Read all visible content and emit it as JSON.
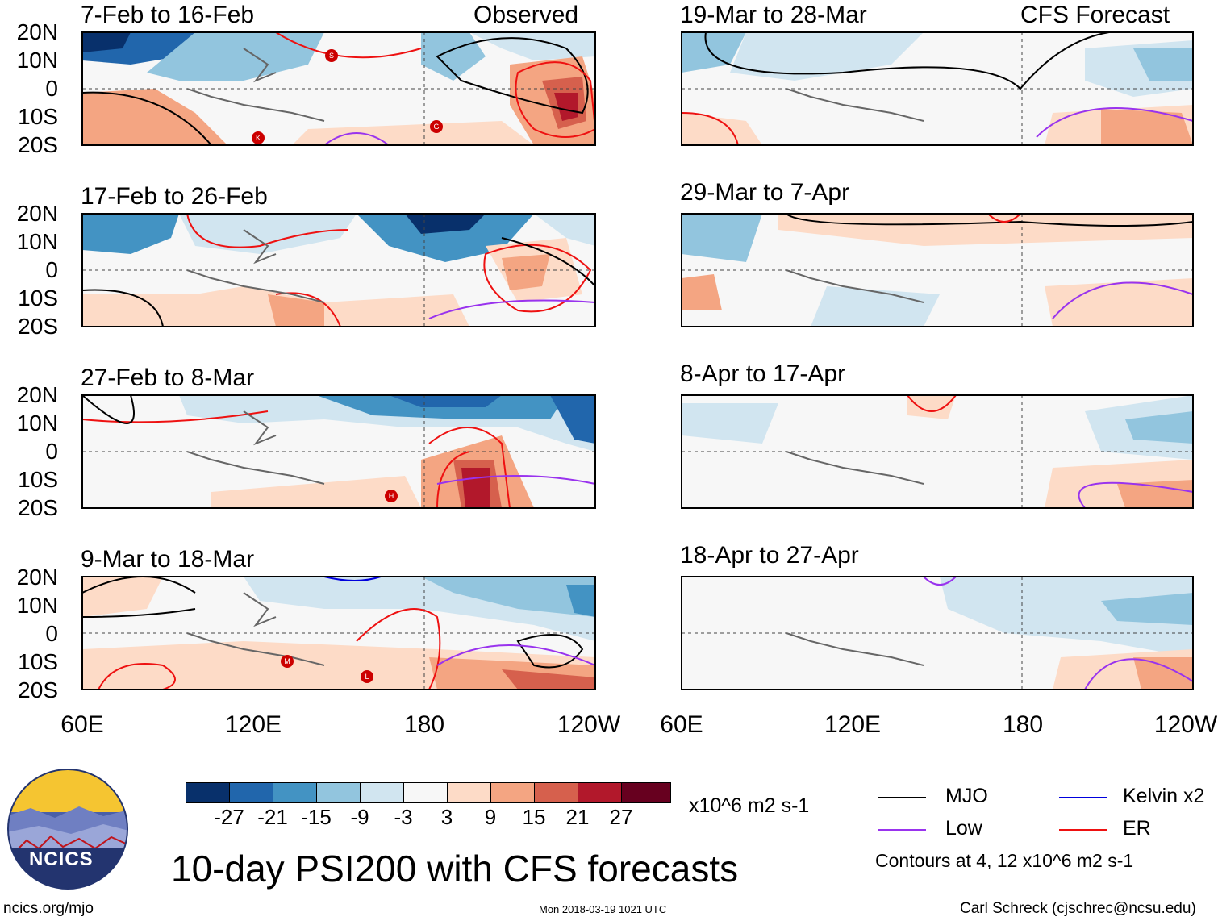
{
  "map_title": "10-day PSI200 with CFS forecasts",
  "observed_label": "Observed",
  "forecast_label": "CFS Forecast",
  "lat_labels": [
    "20N",
    "10N",
    "0",
    "10S",
    "20S"
  ],
  "lon_labels": [
    "60E",
    "120E",
    "180",
    "120W"
  ],
  "panels_left": [
    {
      "title": "7-Feb to 16-Feb"
    },
    {
      "title": "17-Feb to 26-Feb"
    },
    {
      "title": "27-Feb to 8-Mar"
    },
    {
      "title": "9-Mar to 18-Mar"
    }
  ],
  "panels_right": [
    {
      "title": "19-Mar to 28-Mar"
    },
    {
      "title": "29-Mar to 7-Apr"
    },
    {
      "title": "8-Apr to 17-Apr"
    },
    {
      "title": "18-Apr to 27-Apr"
    }
  ],
  "storm_markers": [
    "S",
    "K",
    "G",
    "H",
    "M",
    "L"
  ],
  "colorbar": {
    "ticks": [
      "-27",
      "-21",
      "-15",
      "-9",
      "-3",
      "3",
      "9",
      "15",
      "21",
      "27"
    ],
    "colors": [
      "#08306b",
      "#2166ac",
      "#4393c3",
      "#92c5de",
      "#d1e5f0",
      "#f7f7f7",
      "#fddbc7",
      "#f4a582",
      "#d6604d",
      "#b2182b",
      "#67001f"
    ],
    "units": "x10^6 m2 s-1"
  },
  "legend": {
    "mjo": "MJO",
    "kelvin": "Kelvin x2",
    "low": "Low",
    "er": "ER",
    "contours_note": "Contours at 4, 12 x10^6 m2 s-1",
    "colors": {
      "mjo": "#000000",
      "kelvin": "#0000dd",
      "low": "#9933ee",
      "er": "#ee1111"
    }
  },
  "logo_text": "NCICS",
  "website": "ncics.org/mjo",
  "timestamp": "Mon 2018-03-19 1021 UTC",
  "credit": "Carl Schreck (cjschrec@ncsu.edu)"
}
